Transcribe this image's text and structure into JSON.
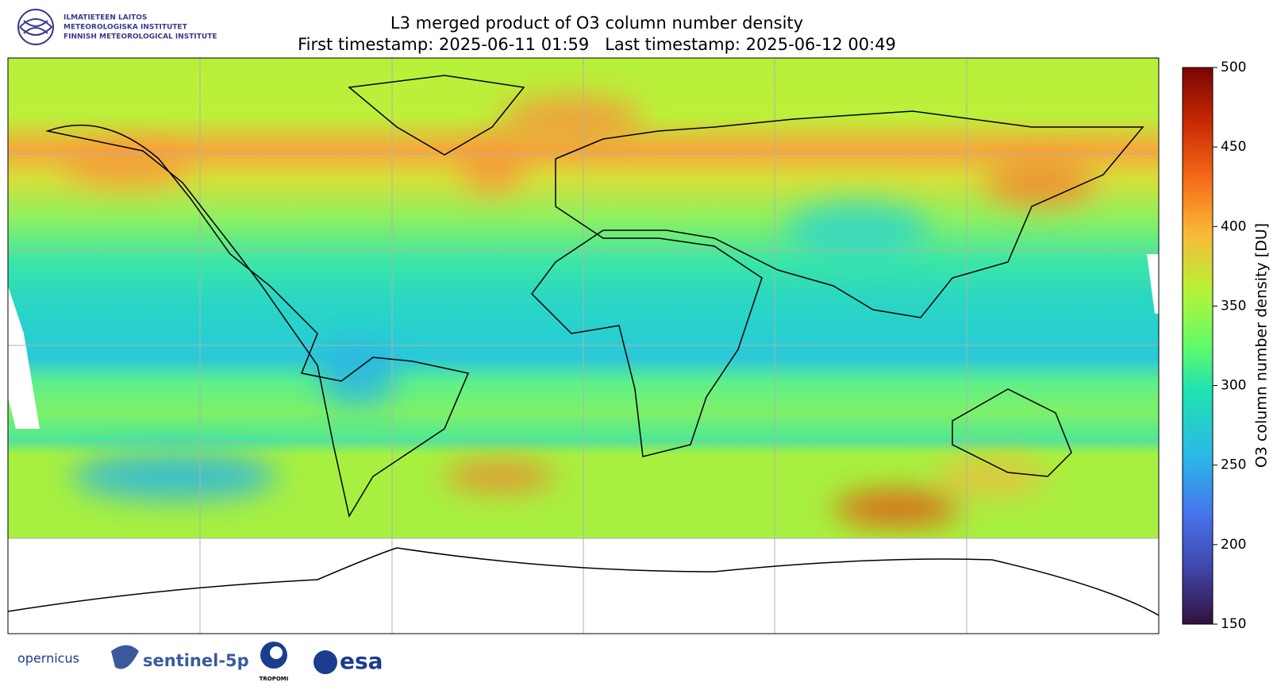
{
  "header": {
    "title": "L3 merged product of O3 column number density",
    "subtitle": "First timestamp: 2025-06-11 01:59   Last timestamp: 2025-06-12 00:49"
  },
  "institute_logo": {
    "lines": [
      "ILMATIETEEN LAITOS",
      "METEOROLOGISKA INSTITUTET",
      "FINNISH METEOROLOGICAL INSTITUTE"
    ]
  },
  "colorbar": {
    "label": "O3 column number density [DU]",
    "lim": [
      150,
      500
    ],
    "ticks": [
      150,
      200,
      250,
      300,
      350,
      400,
      450,
      500
    ]
  },
  "footer_logos": {
    "copernicus": "opernicus",
    "sentinel": "sentinel-5p",
    "tropomi": "TROPOMI",
    "esa": "esa"
  }
}
